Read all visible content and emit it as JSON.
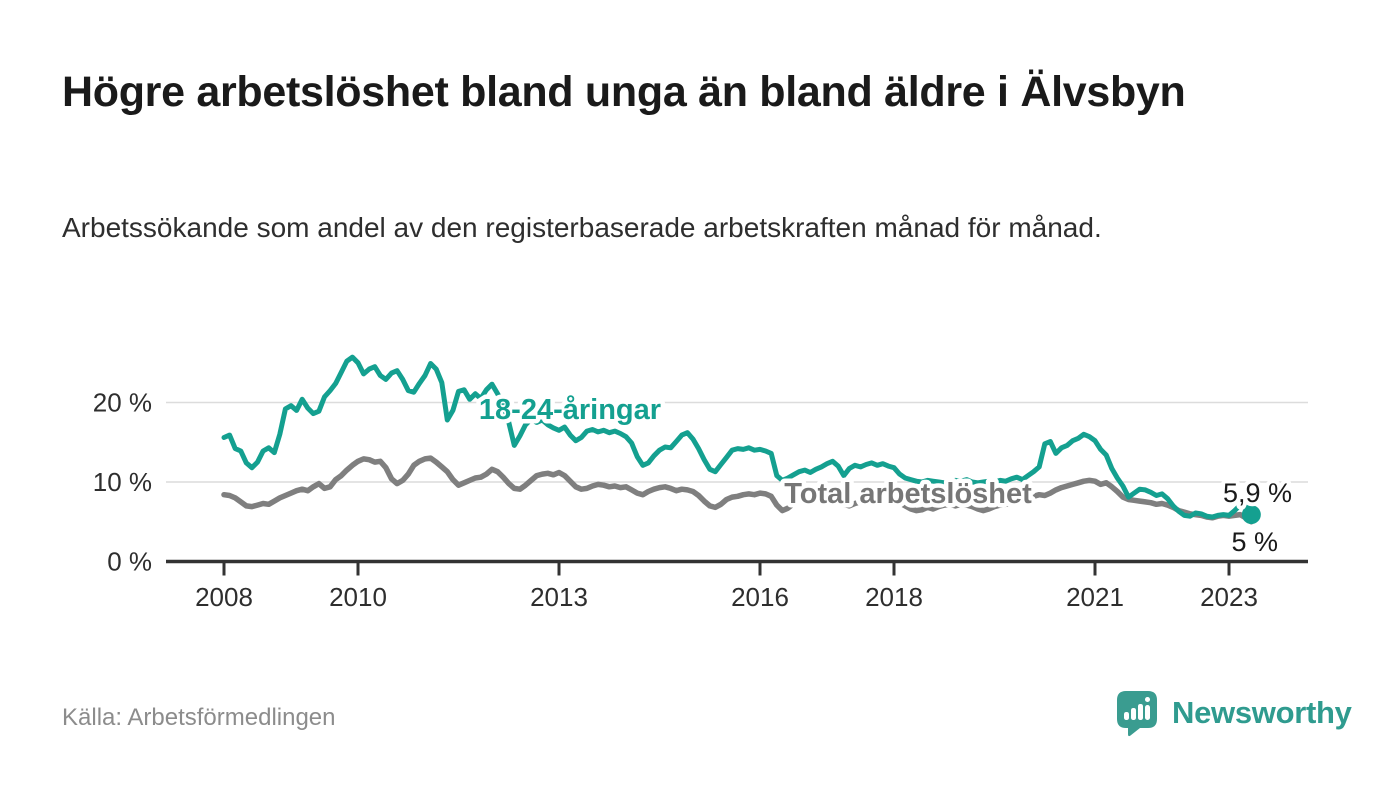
{
  "header": {
    "title": "Högre arbetslöshet bland unga än bland äldre i Älvsbyn",
    "subtitle": "Arbetssökande som andel av den registerbaserade arbetskraften månad för månad."
  },
  "footer": {
    "source": "Källa: Arbetsförmedlingen",
    "brand": "Newsworthy"
  },
  "colors": {
    "youth_line": "#14a090",
    "total_line": "#7f7f7f",
    "axis": "#333333",
    "grid": "#dcdcdc",
    "label_text": "#1a1a1a",
    "muted_text": "#8c8c8c",
    "brand_teal": "#2f9b8f",
    "brand_icon": "#3a9c90",
    "background": "#ffffff"
  },
  "chart_data": {
    "type": "line",
    "frequency": "monthly",
    "x_start": "2008-01",
    "x_end": "2023-05",
    "x_ticks": [
      2008,
      2010,
      2013,
      2016,
      2018,
      2021,
      2023
    ],
    "y_ticks": [
      0,
      10,
      20
    ],
    "y_tick_labels": [
      "0 %",
      "10 %",
      "20 %"
    ],
    "ylim": [
      0,
      27.5
    ],
    "grid": "horizontal",
    "legend_position": "inline-labels",
    "series": [
      {
        "name": "18-24-åringar",
        "color": "#14a090",
        "end_label": "5,9 %",
        "end_dot": true,
        "values": [
          15.6,
          15.9,
          14.2,
          13.9,
          12.4,
          11.8,
          12.5,
          13.9,
          14.3,
          13.7,
          16.0,
          19.2,
          19.6,
          19.0,
          20.4,
          19.3,
          18.6,
          18.9,
          20.7,
          21.5,
          22.4,
          23.8,
          25.2,
          25.7,
          25.0,
          23.6,
          24.2,
          24.5,
          23.4,
          22.9,
          23.7,
          24.0,
          22.9,
          21.5,
          21.3,
          22.4,
          23.4,
          24.9,
          24.2,
          22.5,
          17.8,
          19.0,
          21.4,
          21.6,
          20.4,
          21.1,
          20.5,
          21.6,
          22.3,
          21.1,
          19.8,
          17.5,
          14.6,
          15.8,
          17.2,
          17.9,
          17.5,
          17.8,
          17.2,
          16.8,
          16.5,
          16.9,
          15.9,
          15.2,
          15.6,
          16.4,
          16.6,
          16.3,
          16.5,
          16.2,
          16.4,
          16.1,
          15.7,
          14.9,
          13.2,
          12.1,
          12.4,
          13.3,
          14.0,
          14.4,
          14.3,
          15.1,
          15.9,
          16.2,
          15.4,
          14.2,
          12.8,
          11.6,
          11.3,
          12.2,
          13.1,
          14.0,
          14.2,
          14.1,
          14.3,
          14.0,
          14.1,
          13.9,
          13.6,
          10.8,
          10.2,
          10.5,
          10.9,
          11.3,
          11.5,
          11.2,
          11.6,
          11.9,
          12.3,
          12.6,
          12.0,
          10.8,
          11.7,
          12.1,
          11.9,
          12.2,
          12.4,
          12.1,
          12.3,
          12.0,
          11.8,
          11.0,
          10.5,
          10.3,
          10.1,
          10.0,
          10.2,
          10.1,
          10.0,
          9.9,
          10.1,
          10.2,
          10.1,
          10.3,
          10.0,
          9.9,
          10.0,
          10.1,
          10.0,
          10.2,
          10.1,
          10.4,
          10.6,
          10.3,
          10.8,
          11.3,
          11.9,
          14.8,
          15.1,
          13.6,
          14.3,
          14.6,
          15.2,
          15.5,
          16.0,
          15.7,
          15.2,
          14.1,
          13.4,
          11.7,
          10.5,
          9.5,
          8.1,
          8.6,
          9.1,
          9.0,
          8.7,
          8.3,
          8.5,
          7.9,
          7.0,
          6.3,
          5.8,
          5.7,
          6.1,
          6.0,
          5.7,
          5.6,
          5.8,
          5.9,
          5.8,
          6.4,
          7.1,
          7.3,
          5.9
        ]
      },
      {
        "name": "Total arbetslöshet",
        "color": "#7f7f7f",
        "end_label": "5 %",
        "end_dot": false,
        "values": [
          8.4,
          8.3,
          8.0,
          7.5,
          7.0,
          6.9,
          7.1,
          7.3,
          7.2,
          7.6,
          8.0,
          8.3,
          8.6,
          8.9,
          9.1,
          8.9,
          9.4,
          9.8,
          9.2,
          9.4,
          10.3,
          10.8,
          11.5,
          12.1,
          12.6,
          12.9,
          12.8,
          12.5,
          12.6,
          11.8,
          10.4,
          9.8,
          10.2,
          11.0,
          12.1,
          12.6,
          12.9,
          13.0,
          12.5,
          11.9,
          11.3,
          10.3,
          9.6,
          9.9,
          10.2,
          10.5,
          10.6,
          11.0,
          11.6,
          11.3,
          10.6,
          9.8,
          9.2,
          9.1,
          9.6,
          10.2,
          10.8,
          11.0,
          11.1,
          10.9,
          11.2,
          10.8,
          10.1,
          9.4,
          9.1,
          9.2,
          9.5,
          9.7,
          9.6,
          9.4,
          9.5,
          9.3,
          9.4,
          9.0,
          8.6,
          8.4,
          8.8,
          9.1,
          9.3,
          9.4,
          9.2,
          8.9,
          9.1,
          9.0,
          8.8,
          8.3,
          7.6,
          7.0,
          6.8,
          7.2,
          7.8,
          8.1,
          8.2,
          8.4,
          8.5,
          8.4,
          8.6,
          8.5,
          8.2,
          7.1,
          6.4,
          6.7,
          7.3,
          7.6,
          7.8,
          7.7,
          7.9,
          7.8,
          8.0,
          7.9,
          7.6,
          7.2,
          7.0,
          7.3,
          7.5,
          7.7,
          7.8,
          7.6,
          7.7,
          7.5,
          7.6,
          7.4,
          7.0,
          6.6,
          6.4,
          6.5,
          6.8,
          6.6,
          6.9,
          7.1,
          7.2,
          7.0,
          7.2,
          7.1,
          6.9,
          6.6,
          6.4,
          6.6,
          6.9,
          7.1,
          7.2,
          7.4,
          7.6,
          7.8,
          8.0,
          8.2,
          8.4,
          8.3,
          8.6,
          9.0,
          9.3,
          9.5,
          9.7,
          9.9,
          10.1,
          10.2,
          10.1,
          9.7,
          9.9,
          9.4,
          8.8,
          8.1,
          7.8,
          7.7,
          7.6,
          7.5,
          7.4,
          7.2,
          7.3,
          7.1,
          6.8,
          6.4,
          6.2,
          6.0,
          5.9,
          5.8,
          5.6,
          5.5,
          5.7,
          5.8,
          5.7,
          5.8,
          5.9,
          5.5,
          5.0
        ]
      }
    ]
  }
}
